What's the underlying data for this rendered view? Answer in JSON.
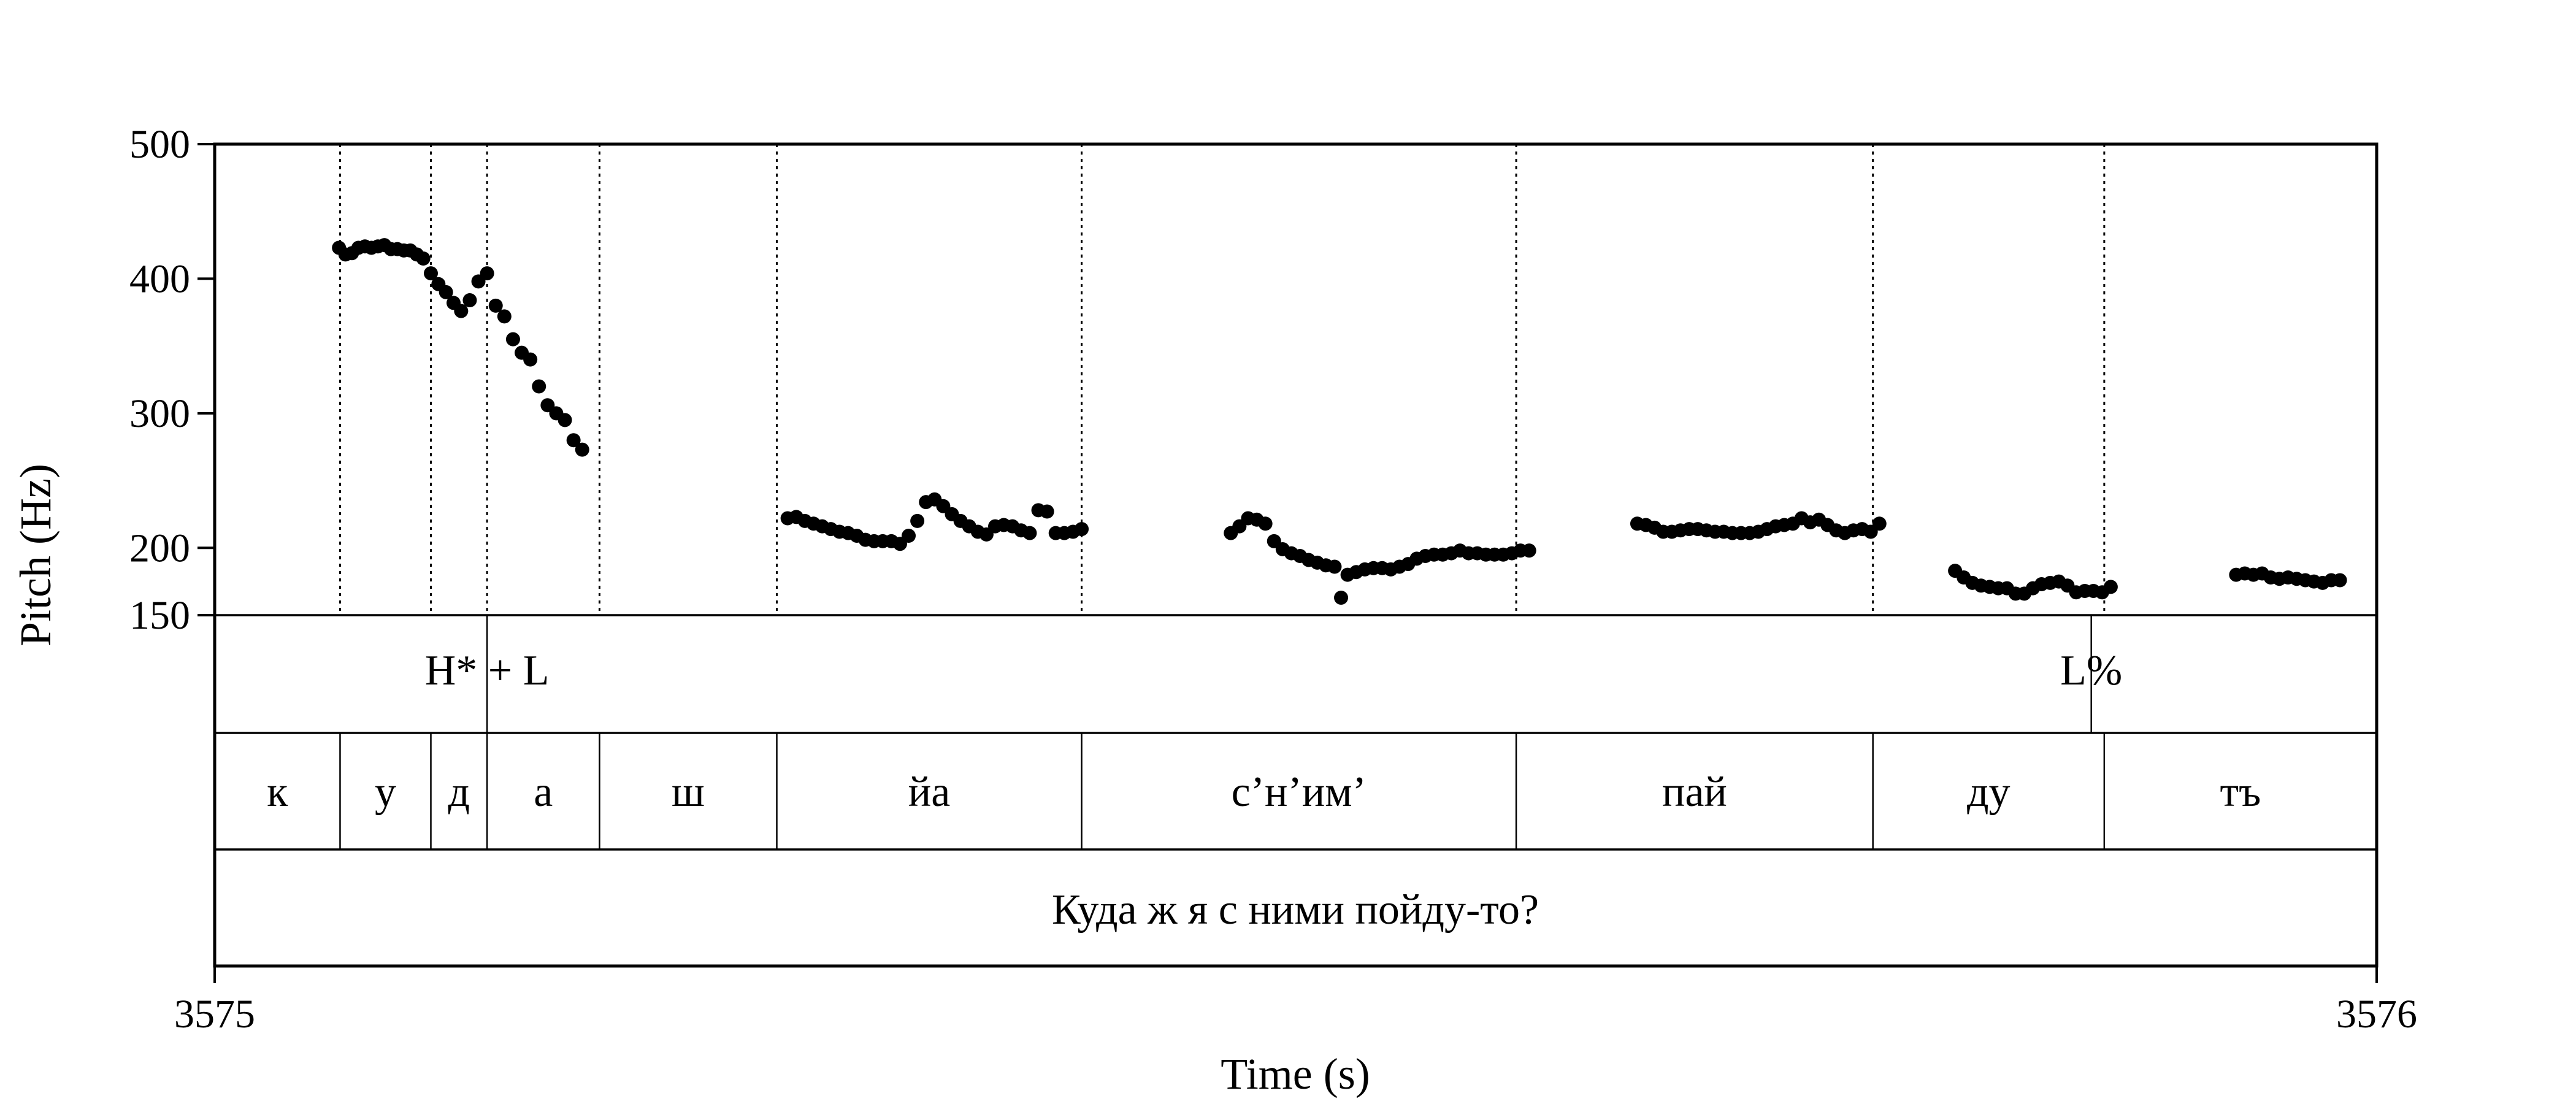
{
  "chart_data": {
    "type": "scatter",
    "xlabel": "Time (s)",
    "ylabel": "Pitch (Hz)",
    "xlim": [
      3575,
      3576
    ],
    "ylim": [
      150,
      500
    ],
    "x_ticks": [
      "3575",
      "3576"
    ],
    "y_ticks": [
      "500",
      "400",
      "300",
      "200",
      "150"
    ],
    "grid": false,
    "series": [
      {
        "values": [
          [
            3575.0575,
            423
          ],
          [
            3575.0605,
            418
          ],
          [
            3575.0635,
            419
          ],
          [
            3575.0665,
            423
          ],
          [
            3575.0695,
            424
          ],
          [
            3575.0725,
            423
          ],
          [
            3575.0755,
            424
          ],
          [
            3575.0785,
            425
          ],
          [
            3575.0815,
            422
          ],
          [
            3575.0845,
            422
          ],
          [
            3575.0875,
            421
          ],
          [
            3575.0905,
            421
          ],
          [
            3575.0935,
            418
          ],
          [
            3575.0965,
            415
          ],
          [
            3575.1,
            404
          ],
          [
            3575.1035,
            396
          ],
          [
            3575.107,
            390
          ],
          [
            3575.1105,
            382
          ],
          [
            3575.114,
            376
          ],
          [
            3575.118,
            384
          ],
          [
            3575.122,
            398
          ],
          [
            3575.126,
            404
          ],
          [
            3575.13,
            380
          ],
          [
            3575.134,
            372
          ],
          [
            3575.138,
            355
          ],
          [
            3575.142,
            345
          ],
          [
            3575.146,
            340
          ],
          [
            3575.15,
            320
          ],
          [
            3575.154,
            306
          ],
          [
            3575.158,
            300
          ],
          [
            3575.162,
            295
          ],
          [
            3575.166,
            280
          ],
          [
            3575.17,
            273
          ],
          [
            3575.265,
            222
          ],
          [
            3575.269,
            223
          ],
          [
            3575.273,
            220
          ],
          [
            3575.277,
            218
          ],
          [
            3575.281,
            216
          ],
          [
            3575.285,
            214
          ],
          [
            3575.289,
            212
          ],
          [
            3575.293,
            211
          ],
          [
            3575.297,
            209
          ],
          [
            3575.301,
            206
          ],
          [
            3575.305,
            205
          ],
          [
            3575.309,
            205
          ],
          [
            3575.313,
            205
          ],
          [
            3575.317,
            203
          ],
          [
            3575.321,
            209
          ],
          [
            3575.325,
            220
          ],
          [
            3575.329,
            234
          ],
          [
            3575.333,
            236
          ],
          [
            3575.337,
            231
          ],
          [
            3575.341,
            225
          ],
          [
            3575.345,
            220
          ],
          [
            3575.349,
            216
          ],
          [
            3575.353,
            212
          ],
          [
            3575.357,
            210
          ],
          [
            3575.361,
            216
          ],
          [
            3575.365,
            217
          ],
          [
            3575.369,
            216
          ],
          [
            3575.373,
            213
          ],
          [
            3575.377,
            211
          ],
          [
            3575.381,
            228
          ],
          [
            3575.385,
            227
          ],
          [
            3575.389,
            211
          ],
          [
            3575.393,
            211
          ],
          [
            3575.397,
            212
          ],
          [
            3575.401,
            214
          ],
          [
            3575.47,
            211
          ],
          [
            3575.474,
            216
          ],
          [
            3575.478,
            222
          ],
          [
            3575.482,
            221
          ],
          [
            3575.486,
            218
          ],
          [
            3575.49,
            205
          ],
          [
            3575.494,
            199
          ],
          [
            3575.498,
            196
          ],
          [
            3575.502,
            194
          ],
          [
            3575.506,
            191
          ],
          [
            3575.51,
            189
          ],
          [
            3575.514,
            187
          ],
          [
            3575.518,
            186
          ],
          [
            3575.521,
            163
          ],
          [
            3575.524,
            180
          ],
          [
            3575.528,
            182
          ],
          [
            3575.532,
            184
          ],
          [
            3575.536,
            185
          ],
          [
            3575.54,
            185
          ],
          [
            3575.544,
            184
          ],
          [
            3575.548,
            186
          ],
          [
            3575.552,
            188
          ],
          [
            3575.556,
            192
          ],
          [
            3575.56,
            194
          ],
          [
            3575.564,
            195
          ],
          [
            3575.568,
            195
          ],
          [
            3575.572,
            196
          ],
          [
            3575.576,
            198
          ],
          [
            3575.58,
            196
          ],
          [
            3575.584,
            196
          ],
          [
            3575.588,
            195
          ],
          [
            3575.592,
            195
          ],
          [
            3575.596,
            195
          ],
          [
            3575.6,
            196
          ],
          [
            3575.604,
            198
          ],
          [
            3575.608,
            198
          ],
          [
            3575.658,
            218
          ],
          [
            3575.662,
            217
          ],
          [
            3575.666,
            215
          ],
          [
            3575.67,
            212
          ],
          [
            3575.674,
            212
          ],
          [
            3575.678,
            213
          ],
          [
            3575.682,
            214
          ],
          [
            3575.686,
            214
          ],
          [
            3575.69,
            213
          ],
          [
            3575.694,
            212
          ],
          [
            3575.698,
            212
          ],
          [
            3575.702,
            211
          ],
          [
            3575.706,
            211
          ],
          [
            3575.71,
            211
          ],
          [
            3575.714,
            212
          ],
          [
            3575.718,
            214
          ],
          [
            3575.722,
            216
          ],
          [
            3575.726,
            217
          ],
          [
            3575.73,
            218
          ],
          [
            3575.734,
            222
          ],
          [
            3575.738,
            219
          ],
          [
            3575.742,
            221
          ],
          [
            3575.746,
            217
          ],
          [
            3575.75,
            213
          ],
          [
            3575.754,
            211
          ],
          [
            3575.758,
            213
          ],
          [
            3575.762,
            214
          ],
          [
            3575.766,
            212
          ],
          [
            3575.77,
            218
          ],
          [
            3575.805,
            183
          ],
          [
            3575.809,
            178
          ],
          [
            3575.813,
            174
          ],
          [
            3575.817,
            172
          ],
          [
            3575.821,
            171
          ],
          [
            3575.825,
            170
          ],
          [
            3575.829,
            170
          ],
          [
            3575.833,
            166
          ],
          [
            3575.837,
            166
          ],
          [
            3575.841,
            170
          ],
          [
            3575.845,
            173
          ],
          [
            3575.849,
            174
          ],
          [
            3575.853,
            175
          ],
          [
            3575.857,
            172
          ],
          [
            3575.861,
            167
          ],
          [
            3575.865,
            168
          ],
          [
            3575.869,
            168
          ],
          [
            3575.873,
            167
          ],
          [
            3575.877,
            171
          ],
          [
            3575.935,
            180
          ],
          [
            3575.939,
            181
          ],
          [
            3575.943,
            180
          ],
          [
            3575.947,
            181
          ],
          [
            3575.951,
            178
          ],
          [
            3575.955,
            177
          ],
          [
            3575.959,
            178
          ],
          [
            3575.963,
            177
          ],
          [
            3575.967,
            176
          ],
          [
            3575.971,
            175
          ],
          [
            3575.975,
            174
          ],
          [
            3575.979,
            176
          ],
          [
            3575.983,
            176
          ]
        ]
      }
    ]
  },
  "tiers": {
    "tones": [
      {
        "label": "H* + L",
        "t": 3575.126
      },
      {
        "label": "L%",
        "t": 3575.868
      }
    ],
    "phones": {
      "boundaries": [
        3575.058,
        3575.1,
        3575.126,
        3575.178,
        3575.26,
        3575.401,
        3575.602,
        3575.767,
        3575.874
      ],
      "labels": [
        "к",
        "у",
        "д",
        "а",
        "ш",
        "йа",
        "с’н’им’",
        "пай",
        "ду",
        "тъ"
      ]
    },
    "sentence": "Куда ж я с ними пойду-то?"
  }
}
